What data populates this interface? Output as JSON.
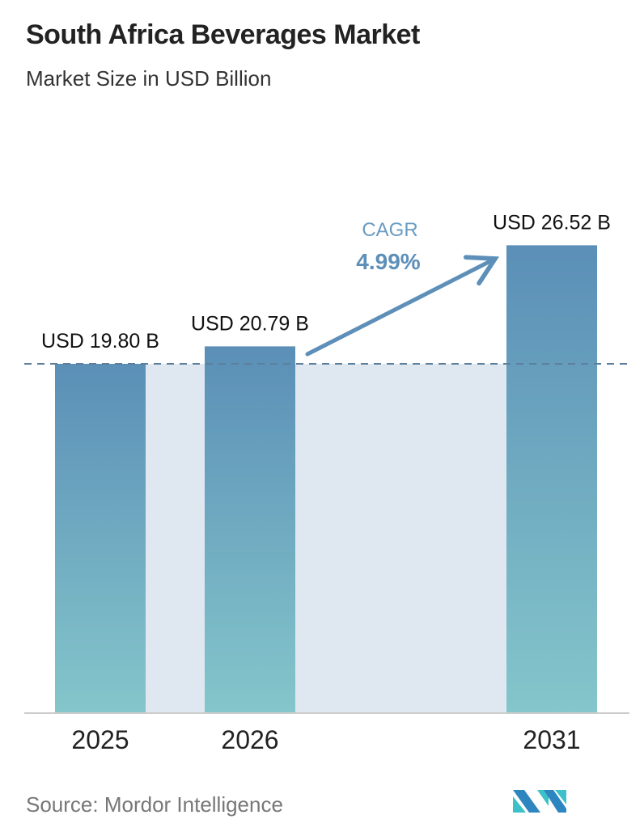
{
  "chart_data": {
    "type": "bar",
    "title": "South Africa Beverages Market",
    "subtitle": "Market Size in USD Billion",
    "categories": [
      "2025",
      "2026",
      "2031"
    ],
    "values": [
      19.8,
      20.79,
      26.52
    ],
    "data_labels": [
      "USD 19.80 B",
      "USD 20.79 B",
      "USD 26.52 B"
    ],
    "annotation": {
      "label": "CAGR",
      "value": "4.99%"
    },
    "ylim": [
      0,
      28
    ],
    "grid": false,
    "colors": {
      "bar_top": "#5b8fb7",
      "bar_bottom": "#84c6cb",
      "annotation": "#5d8fb8",
      "shade": "#dfe8f1"
    }
  },
  "source": "Source:  Mordor Intelligence",
  "logo": {
    "text": "Mordor Intelligence",
    "colors": [
      "#2e86c1",
      "#3cc1c8"
    ]
  }
}
